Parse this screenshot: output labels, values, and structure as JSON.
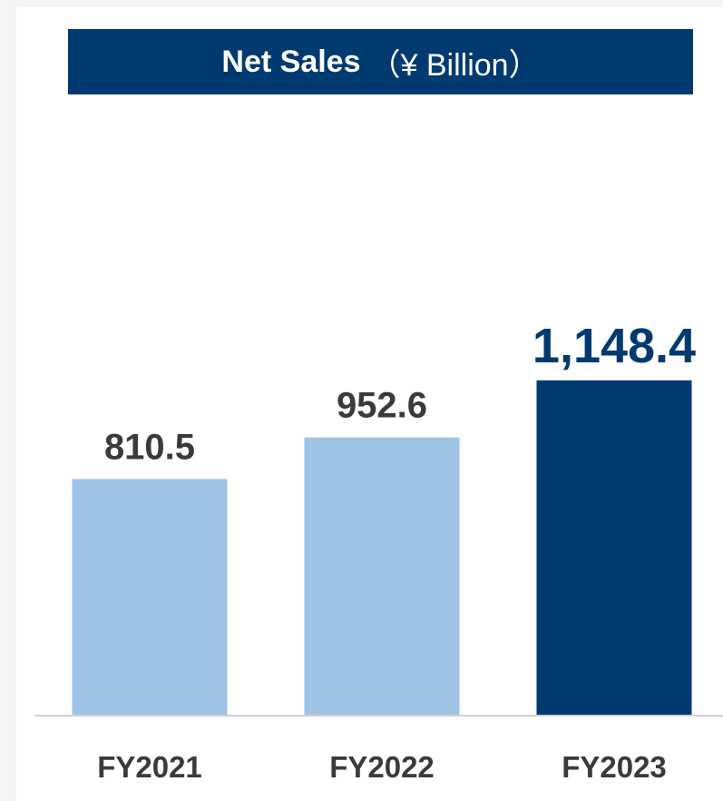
{
  "colors": {
    "bar_past": "#9fc3e6",
    "bar_current": "#003a70",
    "title_bg": "#003a70",
    "label_dark": "#3a3a3a",
    "label_accent": "#003a70",
    "axis": "#d0d0d0"
  },
  "chart_data": {
    "type": "bar",
    "title": "Net Sales",
    "unit": "（¥ Billion）",
    "xlabel": "",
    "ylabel": "",
    "categories": [
      "FY2021",
      "FY2022",
      "FY2023"
    ],
    "values": [
      810.5,
      952.6,
      1148.4
    ],
    "value_labels": [
      "810.5",
      "952.6",
      "1,148.4"
    ],
    "highlight": [
      false,
      false,
      true
    ],
    "ylim": [
      0,
      1300
    ],
    "grid": false,
    "legend": "none"
  }
}
